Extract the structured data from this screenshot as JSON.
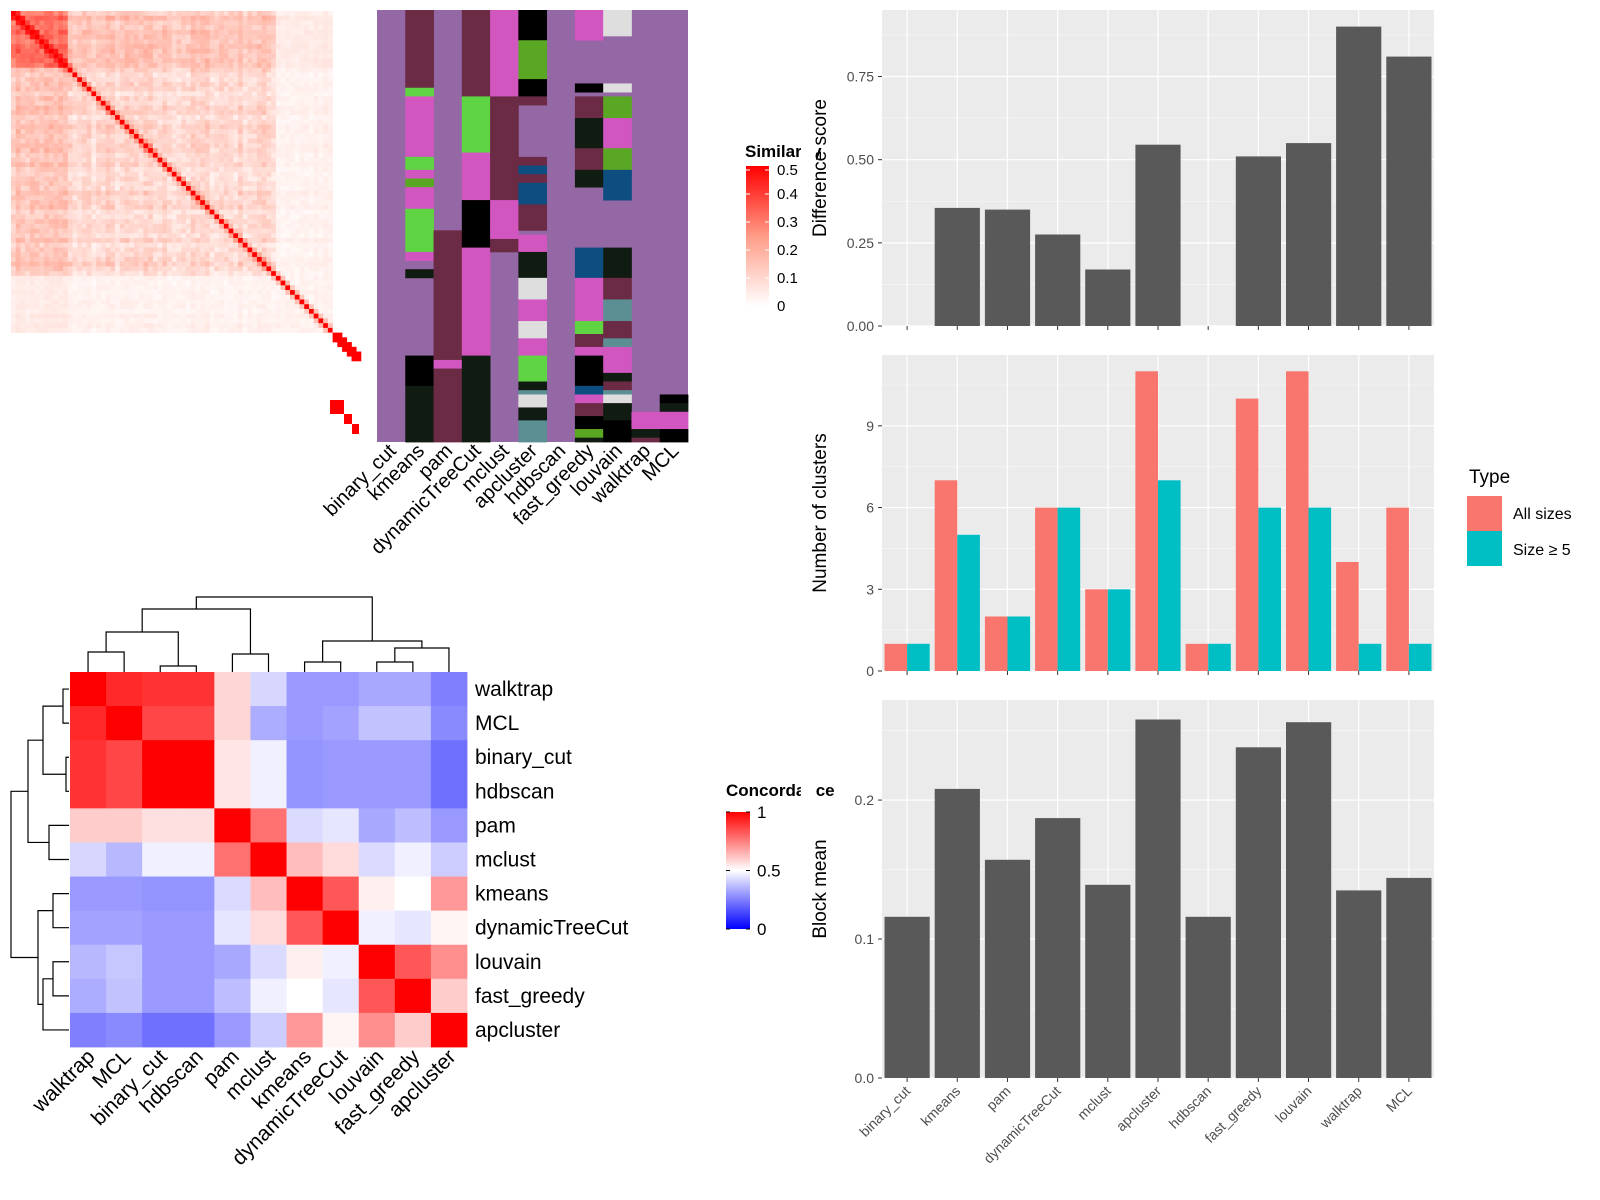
{
  "colors": {
    "similarity_high": "#ff0000",
    "similarity_low": "#ffffff",
    "concordance_high": "#ff0000",
    "concordance_mid": "#ffffff",
    "concordance_low": "#0000ff",
    "bar_fill": "#595959",
    "panel_bg": "#ebebeb",
    "all_sizes": "#f8766d",
    "size_ge5": "#00bfc4",
    "class_bg": "#9467a5",
    "class_colors": [
      "#6b2b45",
      "#d256c0",
      "#5fd443",
      "#101b12",
      "#0d4d80",
      "#dedede",
      "#5c8f94",
      "#000000",
      "#5aa723"
    ]
  },
  "similarity_legend": {
    "title": "Similarity",
    "ticks": [
      "0",
      "0.1",
      "0.2",
      "0.3",
      "0.4",
      "0.5"
    ]
  },
  "concordance_legend": {
    "title": "Concordance",
    "ticks": [
      "0",
      "0.5",
      "1"
    ]
  },
  "methods_order": [
    "binary_cut",
    "kmeans",
    "pam",
    "dynamicTreeCut",
    "mclust",
    "apcluster",
    "hdbscan",
    "fast_greedy",
    "louvain",
    "walktrap",
    "MCL"
  ],
  "concordance_order": [
    "walktrap",
    "MCL",
    "binary_cut",
    "hdbscan",
    "pam",
    "mclust",
    "kmeans",
    "dynamicTreeCut",
    "louvain",
    "fast_greedy",
    "apcluster"
  ],
  "type_legend": {
    "title": "Type",
    "items": [
      "All sizes",
      "Size ≥ 5"
    ]
  },
  "chart_data": [
    {
      "type": "heatmap",
      "title": "",
      "legend_title": "Similarity",
      "value_range": [
        0,
        0.5
      ],
      "n_terms": 74,
      "description_values": "similarity matrix between terms, diagonal = max, block structure at top-left"
    },
    {
      "type": "heatmap",
      "title": "",
      "categories": [
        "binary_cut",
        "kmeans",
        "pam",
        "dynamicTreeCut",
        "mclust",
        "apcluster",
        "hdbscan",
        "fast_greedy",
        "louvain",
        "walktrap",
        "MCL"
      ]
    },
    {
      "type": "heatmap",
      "title": "",
      "legend_title": "Concordance",
      "value_range": [
        0,
        1
      ],
      "rows": [
        "walktrap",
        "MCL",
        "binary_cut",
        "hdbscan",
        "pam",
        "mclust",
        "kmeans",
        "dynamicTreeCut",
        "louvain",
        "fast_greedy",
        "apcluster"
      ],
      "columns": [
        "walktrap",
        "MCL",
        "binary_cut",
        "hdbscan",
        "pam",
        "mclust",
        "kmeans",
        "dynamicTreeCut",
        "louvain",
        "fast_greedy",
        "apcluster"
      ],
      "values": [
        [
          1.0,
          0.92,
          0.9,
          0.9,
          0.58,
          0.42,
          0.3,
          0.3,
          0.33,
          0.33,
          0.25
        ],
        [
          0.92,
          1.0,
          0.86,
          0.86,
          0.58,
          0.34,
          0.3,
          0.32,
          0.38,
          0.38,
          0.27
        ],
        [
          0.9,
          0.86,
          1.0,
          1.0,
          0.55,
          0.47,
          0.29,
          0.3,
          0.3,
          0.3,
          0.22
        ],
        [
          0.9,
          0.86,
          1.0,
          1.0,
          0.55,
          0.47,
          0.29,
          0.3,
          0.3,
          0.3,
          0.22
        ],
        [
          0.6,
          0.6,
          0.56,
          0.56,
          1.0,
          0.78,
          0.43,
          0.45,
          0.33,
          0.37,
          0.3
        ],
        [
          0.42,
          0.36,
          0.47,
          0.47,
          0.78,
          1.0,
          0.63,
          0.57,
          0.43,
          0.47,
          0.4
        ],
        [
          0.3,
          0.3,
          0.29,
          0.29,
          0.43,
          0.63,
          1.0,
          0.83,
          0.53,
          0.5,
          0.7
        ],
        [
          0.32,
          0.32,
          0.3,
          0.3,
          0.45,
          0.57,
          0.83,
          1.0,
          0.47,
          0.45,
          0.52
        ],
        [
          0.36,
          0.39,
          0.3,
          0.3,
          0.33,
          0.43,
          0.53,
          0.47,
          1.0,
          0.83,
          0.72
        ],
        [
          0.34,
          0.38,
          0.3,
          0.3,
          0.37,
          0.47,
          0.5,
          0.45,
          0.83,
          1.0,
          0.6
        ],
        [
          0.25,
          0.27,
          0.22,
          0.22,
          0.3,
          0.4,
          0.7,
          0.52,
          0.72,
          0.6,
          1.0
        ]
      ]
    },
    {
      "type": "bar",
      "title": "",
      "categories": [
        "binary_cut",
        "kmeans",
        "pam",
        "dynamicTreeCut",
        "mclust",
        "apcluster",
        "hdbscan",
        "fast_greedy",
        "louvain",
        "walktrap",
        "MCL"
      ],
      "values": [
        0.0,
        0.355,
        0.35,
        0.275,
        0.17,
        0.545,
        0.0,
        0.51,
        0.55,
        0.9,
        0.81
      ],
      "xlabel": "",
      "ylabel": "Difference score",
      "ylim": [
        0,
        0.95
      ],
      "ticks": [
        "0.00",
        "0.25",
        "0.50",
        "0.75"
      ],
      "grid": true
    },
    {
      "type": "bar",
      "title": "",
      "categories": [
        "binary_cut",
        "kmeans",
        "pam",
        "dynamicTreeCut",
        "mclust",
        "apcluster",
        "hdbscan",
        "fast_greedy",
        "louvain",
        "walktrap",
        "MCL"
      ],
      "series": [
        {
          "name": "All sizes",
          "values": [
            1,
            7,
            2,
            6,
            3,
            11,
            1,
            10,
            11,
            4,
            6
          ]
        },
        {
          "name": "Size ≥ 5",
          "values": [
            1,
            5,
            2,
            6,
            3,
            7,
            1,
            6,
            6,
            1,
            1
          ]
        }
      ],
      "xlabel": "",
      "ylabel": "Number of clusters",
      "ylim": [
        0,
        11.6
      ],
      "ticks": [
        "0",
        "3",
        "6",
        "9"
      ],
      "legend_title": "Type",
      "legend_position": "right",
      "grid": true
    },
    {
      "type": "bar",
      "title": "",
      "categories": [
        "binary_cut",
        "kmeans",
        "pam",
        "dynamicTreeCut",
        "mclust",
        "apcluster",
        "hdbscan",
        "fast_greedy",
        "louvain",
        "walktrap",
        "MCL"
      ],
      "values": [
        0.116,
        0.208,
        0.157,
        0.187,
        0.139,
        0.258,
        0.116,
        0.238,
        0.256,
        0.135,
        0.144
      ],
      "xlabel": "",
      "ylabel": "Block mean",
      "ylim": [
        0,
        0.272
      ],
      "ticks": [
        "0.0",
        "0.1",
        "0.2"
      ],
      "grid": true
    }
  ]
}
